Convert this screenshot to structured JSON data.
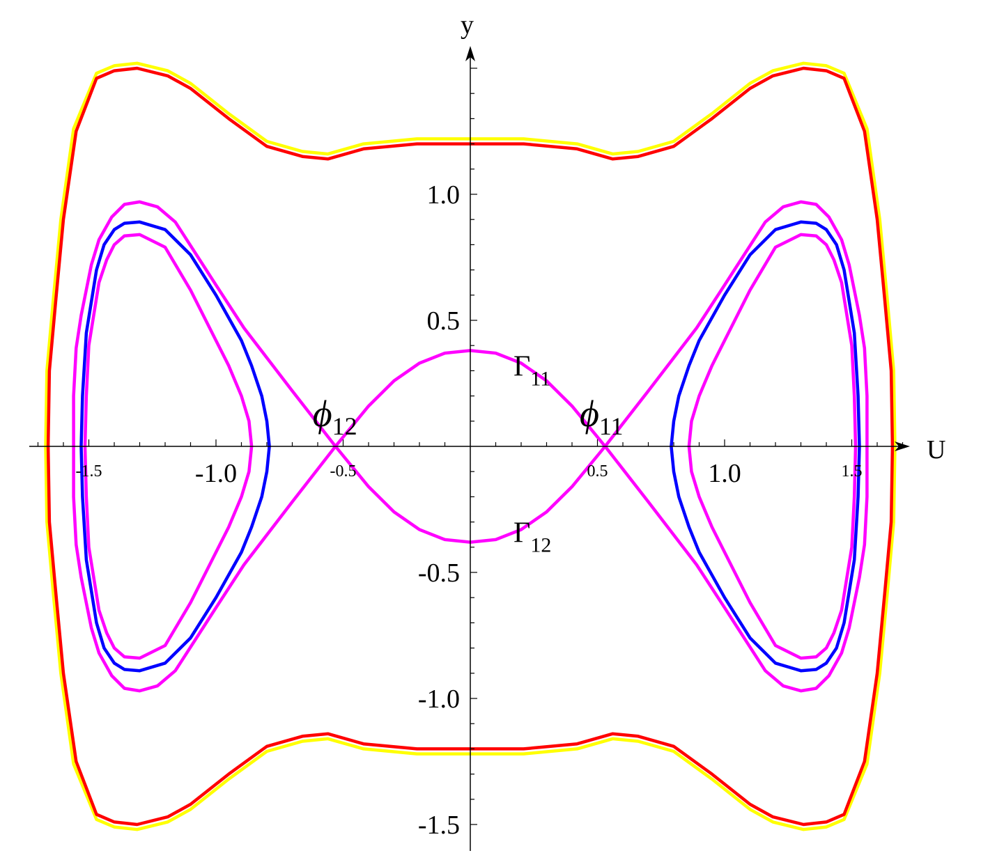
{
  "chart_data": {
    "type": "line",
    "title": "",
    "xlabel": "U",
    "ylabel": "y",
    "xlim": [
      -1.73,
      1.71
    ],
    "ylim": [
      -1.6,
      1.58
    ],
    "grid": false,
    "symmetry": "curves mirrored about both axes; points list the U>=0, y>=0 quarter",
    "x_ticks": [
      {
        "value": -1.5,
        "label": "-1.5",
        "size": "small"
      },
      {
        "value": -1.0,
        "label": "-1.0",
        "size": "large"
      },
      {
        "value": -0.5,
        "label": "-0.5",
        "size": "small"
      },
      {
        "value": 0.5,
        "label": "0.5",
        "size": "small"
      },
      {
        "value": 1.0,
        "label": "1.0",
        "size": "large"
      },
      {
        "value": 1.5,
        "label": "1.5",
        "size": "small"
      }
    ],
    "y_ticks": [
      {
        "value": 1.0,
        "label": "1.0"
      },
      {
        "value": 0.5,
        "label": "0.5"
      },
      {
        "value": -0.5,
        "label": "-0.5"
      },
      {
        "value": -1.0,
        "label": "-1.0"
      },
      {
        "value": -1.5,
        "label": "-1.5"
      }
    ],
    "series": [
      {
        "color": "#ffff00",
        "points": [
          [
            0,
            1.22
          ],
          [
            0.21,
            1.22
          ],
          [
            0.42,
            1.2
          ],
          [
            0.56,
            1.16
          ],
          [
            0.66,
            1.17
          ],
          [
            0.8,
            1.21
          ],
          [
            0.95,
            1.32
          ],
          [
            1.1,
            1.44
          ],
          [
            1.19,
            1.49
          ],
          [
            1.31,
            1.52
          ],
          [
            1.4,
            1.51
          ],
          [
            1.47,
            1.48
          ],
          [
            1.56,
            1.26
          ],
          [
            1.61,
            0.9
          ],
          [
            1.64,
            0.58
          ],
          [
            1.665,
            0.3
          ],
          [
            1.67,
            0
          ]
        ]
      },
      {
        "color": "#ff0000",
        "points": [
          [
            0,
            1.2
          ],
          [
            0.21,
            1.2
          ],
          [
            0.42,
            1.18
          ],
          [
            0.56,
            1.14
          ],
          [
            0.66,
            1.15
          ],
          [
            0.8,
            1.19
          ],
          [
            0.95,
            1.3
          ],
          [
            1.1,
            1.42
          ],
          [
            1.19,
            1.47
          ],
          [
            1.31,
            1.5
          ],
          [
            1.4,
            1.49
          ],
          [
            1.47,
            1.46
          ],
          [
            1.55,
            1.25
          ],
          [
            1.6,
            0.9
          ],
          [
            1.63,
            0.58
          ],
          [
            1.655,
            0.3
          ],
          [
            1.66,
            0
          ]
        ]
      },
      {
        "color": "#ff00ff",
        "points": [
          [
            0,
            0.38
          ],
          [
            0.1,
            0.37
          ],
          [
            0.2,
            0.33
          ],
          [
            0.3,
            0.26
          ],
          [
            0.4,
            0.16
          ],
          [
            0.53,
            0
          ]
        ]
      },
      {
        "color": "#ff00ff",
        "points": [
          [
            0.53,
            0
          ],
          [
            0.7,
            0.22
          ],
          [
            0.89,
            0.47
          ],
          [
            1.0,
            0.64
          ],
          [
            1.16,
            0.89
          ],
          [
            1.23,
            0.95
          ],
          [
            1.3,
            0.97
          ],
          [
            1.36,
            0.96
          ],
          [
            1.41,
            0.91
          ],
          [
            1.46,
            0.82
          ],
          [
            1.49,
            0.72
          ],
          [
            1.53,
            0.52
          ],
          [
            1.55,
            0.39
          ],
          [
            1.56,
            0.2
          ],
          [
            1.56,
            0
          ]
        ]
      },
      {
        "color": "#0000ff",
        "points": [
          [
            0.79,
            0
          ],
          [
            0.8,
            0.1
          ],
          [
            0.82,
            0.2
          ],
          [
            0.86,
            0.32
          ],
          [
            0.9,
            0.42
          ],
          [
            1.0,
            0.6
          ],
          [
            1.1,
            0.76
          ],
          [
            1.2,
            0.86
          ],
          [
            1.3,
            0.89
          ],
          [
            1.36,
            0.885
          ],
          [
            1.4,
            0.86
          ],
          [
            1.44,
            0.8
          ],
          [
            1.47,
            0.7
          ],
          [
            1.51,
            0.45
          ],
          [
            1.525,
            0.2
          ],
          [
            1.53,
            0
          ]
        ]
      },
      {
        "color": "#ff00ff",
        "points": [
          [
            0.86,
            0
          ],
          [
            0.87,
            0.1
          ],
          [
            0.9,
            0.2
          ],
          [
            0.95,
            0.32
          ],
          [
            1.0,
            0.42
          ],
          [
            1.1,
            0.62
          ],
          [
            1.2,
            0.79
          ],
          [
            1.3,
            0.84
          ],
          [
            1.36,
            0.835
          ],
          [
            1.4,
            0.8
          ],
          [
            1.43,
            0.74
          ],
          [
            1.46,
            0.65
          ],
          [
            1.5,
            0.4
          ],
          [
            1.51,
            0.2
          ],
          [
            1.515,
            0
          ]
        ]
      }
    ],
    "annotations": [
      {
        "text": "ϕ",
        "sub": "12",
        "U": -0.62,
        "y": 0.08
      },
      {
        "text": "ϕ",
        "sub": "11",
        "U": 0.43,
        "y": 0.08
      },
      {
        "text": "Γ",
        "sub": "11",
        "U": 0.17,
        "y": 0.28
      },
      {
        "text": "Γ",
        "sub": "12",
        "U": 0.17,
        "y": -0.38
      }
    ]
  }
}
